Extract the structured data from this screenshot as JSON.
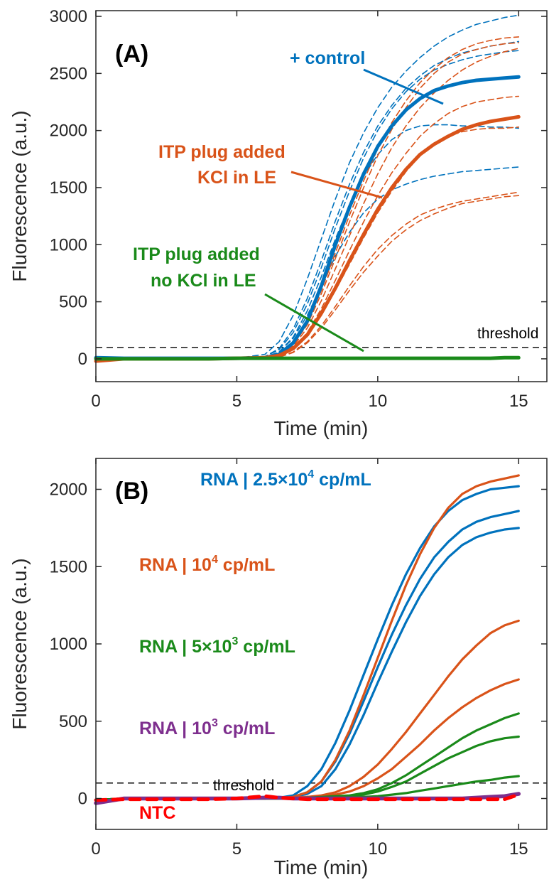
{
  "colors": {
    "blue": "#0072BD",
    "orange": "#D95319",
    "green": "#1A8A1A",
    "purple": "#7E2F8E",
    "red": "#FF0000",
    "axis": "#262626"
  },
  "chart_data": [
    {
      "type": "line",
      "panel_label": "(A)",
      "xlabel": "Time (min)",
      "ylabel": "Fluorescence (a.u.)",
      "xlim": [
        0,
        16
      ],
      "ylim": [
        -200,
        3050
      ],
      "xticks": [
        0,
        5,
        10,
        15
      ],
      "yticks": [
        0,
        500,
        1000,
        1500,
        2000,
        2500,
        3000
      ],
      "threshold": {
        "label": "threshold",
        "value": 100
      },
      "annotations": [
        {
          "text": "+ control",
          "color": "blue"
        },
        {
          "text": "ITP plug added",
          "color": "orange"
        },
        {
          "text": "KCl in LE",
          "color": "orange"
        },
        {
          "text": "ITP plug added",
          "color": "green"
        },
        {
          "text": "no KCl in LE",
          "color": "green"
        }
      ],
      "x": [
        0,
        1,
        2,
        3,
        4,
        5,
        6,
        6.5,
        7,
        7.5,
        8,
        8.5,
        9,
        9.5,
        10,
        10.5,
        11,
        11.5,
        12,
        12.5,
        13,
        13.5,
        14,
        14.5,
        15
      ],
      "series": [
        {
          "color": "blue",
          "style": "solid",
          "y": [
            10,
            5,
            5,
            5,
            5,
            5,
            10,
            40,
            140,
            330,
            640,
            1000,
            1330,
            1620,
            1860,
            2040,
            2180,
            2280,
            2350,
            2390,
            2420,
            2440,
            2450,
            2460,
            2470
          ]
        },
        {
          "color": "orange",
          "style": "solid",
          "y": [
            -20,
            0,
            0,
            0,
            0,
            5,
            10,
            30,
            90,
            210,
            400,
            620,
            860,
            1090,
            1310,
            1500,
            1660,
            1790,
            1880,
            1950,
            2010,
            2050,
            2080,
            2100,
            2120
          ]
        },
        {
          "color": "green",
          "style": "solid",
          "y": [
            0,
            0,
            0,
            0,
            0,
            5,
            5,
            5,
            5,
            5,
            5,
            5,
            5,
            5,
            5,
            5,
            5,
            5,
            5,
            5,
            5,
            5,
            5,
            10,
            10
          ]
        },
        {
          "color": "blue",
          "style": "dashed",
          "y": [
            0,
            0,
            0,
            0,
            0,
            5,
            40,
            150,
            380,
            700,
            1050,
            1400,
            1720,
            1980,
            2200,
            2380,
            2520,
            2640,
            2740,
            2820,
            2880,
            2930,
            2960,
            2990,
            3010
          ]
        },
        {
          "color": "blue",
          "style": "dashed",
          "y": [
            0,
            0,
            0,
            0,
            0,
            5,
            20,
            90,
            260,
            530,
            860,
            1210,
            1530,
            1810,
            2040,
            2220,
            2370,
            2480,
            2570,
            2630,
            2680,
            2710,
            2740,
            2760,
            2780
          ]
        },
        {
          "color": "blue",
          "style": "dashed",
          "y": [
            0,
            0,
            0,
            0,
            0,
            5,
            20,
            80,
            230,
            480,
            800,
            1150,
            1470,
            1760,
            2000,
            2190,
            2340,
            2450,
            2530,
            2580,
            2620,
            2650,
            2670,
            2690,
            2700
          ]
        },
        {
          "color": "blue",
          "style": "dashed",
          "y": [
            0,
            0,
            0,
            0,
            0,
            5,
            15,
            60,
            190,
            420,
            720,
            1050,
            1350,
            1600,
            1790,
            1920,
            2000,
            2040,
            2050,
            2050,
            2040,
            2040,
            2030,
            2030,
            2020
          ]
        },
        {
          "color": "blue",
          "style": "dashed",
          "y": [
            0,
            0,
            0,
            0,
            0,
            5,
            15,
            60,
            180,
            380,
            640,
            900,
            1110,
            1280,
            1400,
            1480,
            1530,
            1570,
            1600,
            1620,
            1640,
            1650,
            1660,
            1670,
            1680
          ]
        },
        {
          "color": "orange",
          "style": "dashed",
          "y": [
            0,
            0,
            0,
            0,
            0,
            5,
            10,
            40,
            130,
            320,
            600,
            930,
            1260,
            1560,
            1840,
            2070,
            2260,
            2420,
            2540,
            2640,
            2710,
            2760,
            2790,
            2810,
            2820
          ]
        },
        {
          "color": "orange",
          "style": "dashed",
          "y": [
            0,
            0,
            0,
            0,
            0,
            5,
            10,
            35,
            120,
            300,
            570,
            880,
            1200,
            1500,
            1780,
            2010,
            2200,
            2370,
            2500,
            2600,
            2670,
            2710,
            2740,
            2760,
            2770
          ]
        },
        {
          "color": "orange",
          "style": "dashed",
          "y": [
            0,
            0,
            0,
            0,
            0,
            5,
            10,
            30,
            110,
            270,
            510,
            790,
            1080,
            1360,
            1620,
            1850,
            2040,
            2200,
            2330,
            2440,
            2530,
            2600,
            2650,
            2690,
            2720
          ]
        },
        {
          "color": "orange",
          "style": "dashed",
          "y": [
            0,
            0,
            0,
            0,
            0,
            5,
            5,
            25,
            90,
            230,
            440,
            690,
            950,
            1200,
            1430,
            1630,
            1800,
            1950,
            2060,
            2150,
            2210,
            2250,
            2270,
            2290,
            2300
          ]
        },
        {
          "color": "orange",
          "style": "dashed",
          "y": [
            0,
            0,
            0,
            0,
            0,
            5,
            5,
            20,
            80,
            200,
            380,
            600,
            830,
            1060,
            1280,
            1470,
            1640,
            1780,
            1880,
            1950,
            1990,
            2010,
            2020,
            2020,
            2030
          ]
        },
        {
          "color": "orange",
          "style": "dashed",
          "y": [
            0,
            0,
            0,
            0,
            0,
            5,
            5,
            15,
            60,
            150,
            290,
            460,
            640,
            810,
            960,
            1080,
            1180,
            1260,
            1310,
            1350,
            1380,
            1400,
            1420,
            1440,
            1460
          ]
        },
        {
          "color": "orange",
          "style": "dashed",
          "y": [
            0,
            0,
            0,
            0,
            0,
            5,
            5,
            15,
            55,
            140,
            270,
            430,
            600,
            760,
            900,
            1030,
            1130,
            1210,
            1270,
            1320,
            1360,
            1380,
            1400,
            1420,
            1430
          ]
        }
      ]
    },
    {
      "type": "line",
      "panel_label": "(B)",
      "xlabel": "Time (min)",
      "ylabel": "Fluorescence (a.u.)",
      "xlim": [
        0,
        16
      ],
      "ylim": [
        -200,
        2200
      ],
      "xticks": [
        0,
        5,
        10,
        15
      ],
      "yticks": [
        0,
        500,
        1000,
        1500,
        2000
      ],
      "threshold": {
        "label": "threshold",
        "value": 100
      },
      "legend": [
        {
          "prefix": "RNA | 2.5×10",
          "sup": "4",
          "suffix": " cp/mL",
          "color": "blue"
        },
        {
          "prefix": "RNA | 10",
          "sup": "4",
          "suffix": " cp/mL",
          "color": "orange"
        },
        {
          "prefix": "RNA | 5×10",
          "sup": "3",
          "suffix": " cp/mL",
          "color": "green"
        },
        {
          "prefix": "RNA | 10",
          "sup": "3",
          "suffix": " cp/mL",
          "color": "purple"
        },
        {
          "prefix": "NTC",
          "sup": "",
          "suffix": "",
          "color": "red"
        }
      ],
      "x": [
        0,
        1,
        2,
        3,
        4,
        5,
        6,
        6.5,
        7,
        7.5,
        8,
        8.5,
        9,
        9.5,
        10,
        10.5,
        11,
        11.5,
        12,
        12.5,
        13,
        13.5,
        14,
        14.5,
        15
      ],
      "series": [
        {
          "color": "blue",
          "y": [
            -10,
            0,
            0,
            0,
            0,
            0,
            0,
            5,
            20,
            80,
            190,
            360,
            570,
            800,
            1030,
            1250,
            1450,
            1620,
            1760,
            1860,
            1930,
            1970,
            2000,
            2010,
            2020
          ]
        },
        {
          "color": "blue",
          "y": [
            -10,
            0,
            0,
            0,
            0,
            0,
            0,
            5,
            10,
            40,
            110,
            240,
            420,
            630,
            850,
            1060,
            1250,
            1420,
            1560,
            1660,
            1740,
            1790,
            1820,
            1840,
            1860
          ]
        },
        {
          "color": "blue",
          "y": [
            -10,
            0,
            0,
            0,
            0,
            0,
            0,
            5,
            10,
            30,
            80,
            190,
            350,
            540,
            750,
            950,
            1140,
            1310,
            1450,
            1560,
            1640,
            1690,
            1720,
            1740,
            1750
          ]
        },
        {
          "color": "orange",
          "y": [
            -10,
            0,
            0,
            0,
            0,
            0,
            0,
            5,
            10,
            40,
            110,
            250,
            440,
            670,
            910,
            1150,
            1380,
            1580,
            1750,
            1880,
            1970,
            2020,
            2050,
            2070,
            2090
          ]
        },
        {
          "color": "orange",
          "y": [
            -10,
            0,
            0,
            0,
            0,
            0,
            0,
            0,
            5,
            10,
            20,
            40,
            80,
            140,
            220,
            320,
            430,
            550,
            670,
            790,
            900,
            990,
            1070,
            1120,
            1150
          ]
        },
        {
          "color": "orange",
          "y": [
            -10,
            0,
            0,
            0,
            0,
            0,
            0,
            0,
            5,
            10,
            15,
            25,
            45,
            80,
            130,
            190,
            270,
            350,
            440,
            520,
            590,
            650,
            700,
            740,
            770
          ]
        },
        {
          "color": "green",
          "y": [
            -10,
            0,
            0,
            0,
            0,
            0,
            0,
            0,
            0,
            5,
            10,
            15,
            20,
            35,
            60,
            100,
            150,
            210,
            270,
            330,
            390,
            440,
            480,
            520,
            550
          ]
        },
        {
          "color": "green",
          "y": [
            -10,
            0,
            0,
            0,
            0,
            0,
            0,
            0,
            0,
            5,
            5,
            10,
            15,
            25,
            45,
            75,
            110,
            160,
            210,
            260,
            300,
            340,
            370,
            390,
            400
          ]
        },
        {
          "color": "green",
          "y": [
            -10,
            0,
            0,
            0,
            0,
            0,
            0,
            0,
            0,
            0,
            5,
            5,
            5,
            10,
            15,
            25,
            35,
            50,
            65,
            80,
            95,
            110,
            120,
            135,
            145
          ]
        },
        {
          "color": "purple",
          "y": [
            -30,
            0,
            0,
            0,
            0,
            0,
            5,
            5,
            0,
            0,
            0,
            0,
            0,
            0,
            0,
            0,
            0,
            0,
            0,
            0,
            0,
            5,
            10,
            15,
            30
          ]
        },
        {
          "color": "red",
          "style": "dashed",
          "y": [
            -10,
            -5,
            -5,
            -5,
            -5,
            0,
            15,
            5,
            0,
            -5,
            -5,
            -5,
            -5,
            -5,
            -5,
            -5,
            -5,
            -5,
            -5,
            -5,
            -5,
            -5,
            -5,
            -5,
            25
          ]
        }
      ]
    }
  ]
}
